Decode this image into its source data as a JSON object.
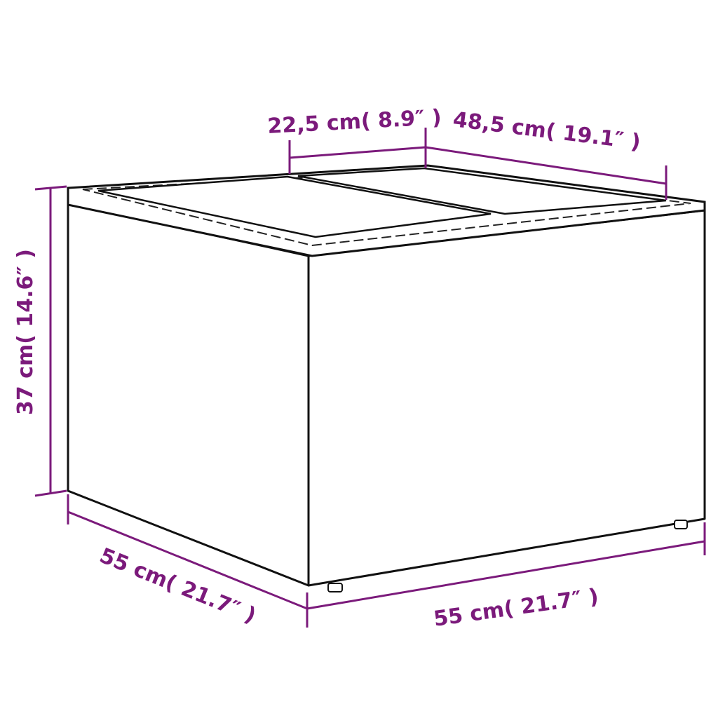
{
  "colors": {
    "dimension": "#7b1a7b",
    "outline": "#111111",
    "background": "#ffffff"
  },
  "product": {
    "type": "rattan storage table with two top panels"
  },
  "dimensions": {
    "top_panel_width": "22,5 cm( 8.9″ )",
    "top_depth": "48,5 cm( 19.1″ )",
    "height": "37 cm( 14.6″ )",
    "depth": "55 cm( 21.7″ )",
    "width": "55 cm( 21.7″ )"
  }
}
